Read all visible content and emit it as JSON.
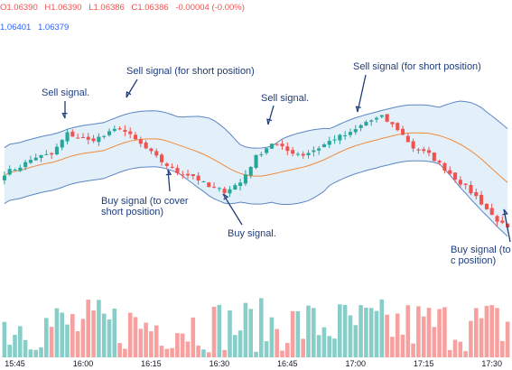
{
  "legend": {
    "open": "O1.06390",
    "high": "H1.06390",
    "low": "L1.06386",
    "close": "C1.06386",
    "change": "-0.00004 (-0.00%)",
    "bb_values": [
      "1.06401",
      "1.06379"
    ]
  },
  "colors": {
    "up": "#26a69a",
    "down": "#ef5350",
    "band_line": "#5b86c5",
    "band_fill": "#e3f0fa",
    "basis": "#f08a3c",
    "annotation": "#1f3d7a"
  },
  "annotations": [
    {
      "text": "Sell signal.",
      "kind": "sell"
    },
    {
      "text": "Sell signal (for short position)",
      "kind": "sell"
    },
    {
      "text": "Sell signal.",
      "kind": "sell"
    },
    {
      "text": "Sell signal (for short position)",
      "kind": "sell"
    },
    {
      "text": "Buy signal (to cover short position)",
      "kind": "buy"
    },
    {
      "text": "Buy signal.",
      "kind": "buy"
    },
    {
      "text": "Buy signal (to c position)",
      "kind": "buy"
    }
  ],
  "chart_data": {
    "type": "candlestick",
    "x_ticks": [
      "15:45",
      "16:00",
      "16:15",
      "16:30",
      "16:45",
      "17:00",
      "17:15",
      "17:30"
    ],
    "close_anchors": [
      [
        0,
        1.0652
      ],
      [
        3,
        1.06535
      ],
      [
        6,
        1.06555
      ],
      [
        9,
        1.0656
      ],
      [
        12,
        1.06605
      ],
      [
        16,
        1.0659
      ],
      [
        19,
        1.066
      ],
      [
        22,
        1.06618
      ],
      [
        26,
        1.06582
      ],
      [
        30,
        1.06545
      ],
      [
        33,
        1.06522
      ],
      [
        36,
        1.06515
      ],
      [
        39,
        1.0649
      ],
      [
        42,
        1.06482
      ],
      [
        45,
        1.065
      ],
      [
        48,
        1.06555
      ],
      [
        51,
        1.06585
      ],
      [
        54,
        1.06568
      ],
      [
        57,
        1.0656
      ],
      [
        60,
        1.06575
      ],
      [
        63,
        1.06595
      ],
      [
        66,
        1.06605
      ],
      [
        69,
        1.0663
      ],
      [
        72,
        1.0664
      ],
      [
        75,
        1.06615
      ],
      [
        78,
        1.06575
      ],
      [
        81,
        1.0656
      ],
      [
        84,
        1.0653
      ],
      [
        87,
        1.065
      ],
      [
        90,
        1.0647
      ],
      [
        93,
        1.0643
      ],
      [
        96,
        1.064
      ]
    ],
    "bollinger": {
      "period": 20,
      "stddev": 2
    },
    "volume_range": [
      5,
      60
    ]
  }
}
